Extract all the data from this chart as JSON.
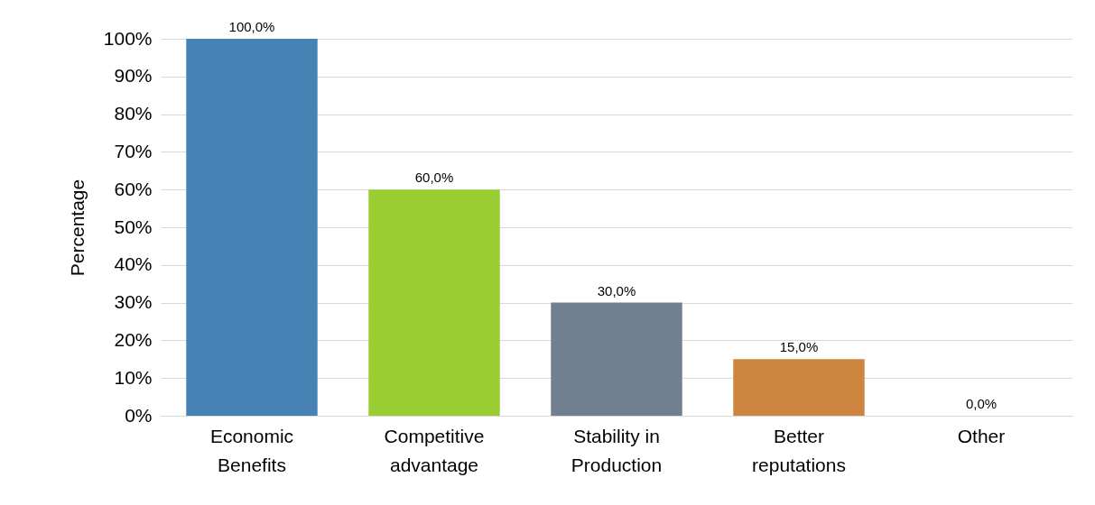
{
  "chart_data": {
    "type": "bar",
    "ylabel": "Percentage",
    "categories": [
      "Economic Benefits",
      "Competitive advantage",
      "Stability in Production",
      "Better reputations",
      "Other"
    ],
    "values": [
      100,
      60,
      30,
      15,
      0
    ],
    "value_labels": [
      "100,0%",
      "60,0%",
      "30,0%",
      "15,0%",
      "0,0%"
    ],
    "colors": [
      "#4682b4",
      "#9acd32",
      "#708090",
      "#cd853f",
      "#4472c4"
    ],
    "ylim": [
      0,
      100
    ],
    "yticks": [
      {
        "value": 0,
        "label": "0%"
      },
      {
        "value": 10,
        "label": "10%"
      },
      {
        "value": 20,
        "label": "20%"
      },
      {
        "value": 30,
        "label": "30%"
      },
      {
        "value": 40,
        "label": "40%"
      },
      {
        "value": 50,
        "label": "50%"
      },
      {
        "value": 60,
        "label": "60%"
      },
      {
        "value": 70,
        "label": "70%"
      },
      {
        "value": 80,
        "label": "80%"
      },
      {
        "value": 90,
        "label": "90%"
      },
      {
        "value": 100,
        "label": "100%"
      }
    ],
    "grid": "y"
  }
}
